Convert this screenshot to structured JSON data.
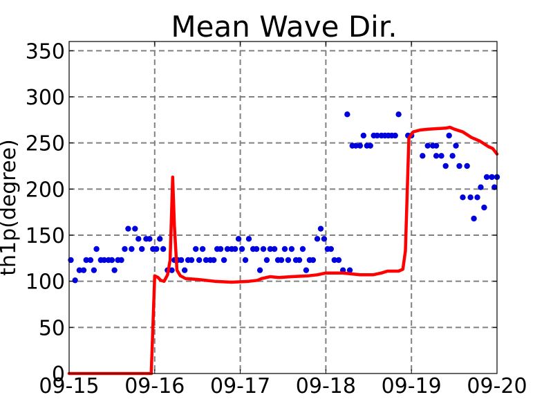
{
  "chart_data": {
    "type": "line",
    "title": "Mean Wave Dir.",
    "xlabel": "",
    "ylabel": "th1p(degree)",
    "x_ticks": [
      "09-15",
      "09-16",
      "09-17",
      "09-18",
      "09-19",
      "09-20"
    ],
    "y_ticks": [
      0,
      50,
      100,
      150,
      200,
      250,
      300,
      350
    ],
    "xlim": [
      0,
      5
    ],
    "ylim": [
      0,
      360
    ],
    "grid": true,
    "colors": {
      "observed": "#0000dd",
      "model": "#ff0000",
      "grid": "#808080"
    },
    "series": [
      {
        "name": "",
        "kind": "scatter",
        "points": [
          [
            0.02,
            123
          ],
          [
            0.07,
            101
          ],
          [
            0.12,
            112
          ],
          [
            0.17,
            112
          ],
          [
            0.2,
            123
          ],
          [
            0.25,
            123
          ],
          [
            0.29,
            112
          ],
          [
            0.32,
            135
          ],
          [
            0.37,
            123
          ],
          [
            0.41,
            123
          ],
          [
            0.46,
            123
          ],
          [
            0.5,
            123
          ],
          [
            0.53,
            112
          ],
          [
            0.57,
            123
          ],
          [
            0.61,
            123
          ],
          [
            0.65,
            135
          ],
          [
            0.69,
            157
          ],
          [
            0.73,
            135
          ],
          [
            0.77,
            157
          ],
          [
            0.81,
            146
          ],
          [
            0.85,
            135
          ],
          [
            0.9,
            146
          ],
          [
            0.94,
            146
          ],
          [
            0.98,
            135
          ],
          [
            1.02,
            135
          ],
          [
            1.06,
            146
          ],
          [
            1.1,
            135
          ],
          [
            1.15,
            112
          ],
          [
            1.2,
            112
          ],
          [
            1.23,
            123
          ],
          [
            1.27,
            123
          ],
          [
            1.31,
            123
          ],
          [
            1.35,
            112
          ],
          [
            1.39,
            123
          ],
          [
            1.43,
            123
          ],
          [
            1.48,
            135
          ],
          [
            1.52,
            123
          ],
          [
            1.56,
            135
          ],
          [
            1.6,
            123
          ],
          [
            1.65,
            123
          ],
          [
            1.69,
            123
          ],
          [
            1.73,
            135
          ],
          [
            1.77,
            135
          ],
          [
            1.81,
            123
          ],
          [
            1.85,
            135
          ],
          [
            1.9,
            135
          ],
          [
            1.94,
            135
          ],
          [
            1.98,
            146
          ],
          [
            2.02,
            135
          ],
          [
            2.06,
            123
          ],
          [
            2.1,
            146
          ],
          [
            2.15,
            135
          ],
          [
            2.19,
            135
          ],
          [
            2.23,
            112
          ],
          [
            2.27,
            135
          ],
          [
            2.31,
            123
          ],
          [
            2.35,
            135
          ],
          [
            2.4,
            135
          ],
          [
            2.44,
            123
          ],
          [
            2.48,
            123
          ],
          [
            2.52,
            135
          ],
          [
            2.56,
            123
          ],
          [
            2.6,
            135
          ],
          [
            2.65,
            123
          ],
          [
            2.69,
            123
          ],
          [
            2.73,
            135
          ],
          [
            2.77,
            112
          ],
          [
            2.81,
            123
          ],
          [
            2.85,
            123
          ],
          [
            2.9,
            146
          ],
          [
            2.94,
            157
          ],
          [
            2.98,
            146
          ],
          [
            3.02,
            135
          ],
          [
            3.06,
            135
          ],
          [
            3.1,
            123
          ],
          [
            3.15,
            123
          ],
          [
            3.2,
            112
          ],
          [
            3.25,
            281
          ],
          [
            3.28,
            112
          ],
          [
            3.31,
            247
          ],
          [
            3.35,
            247
          ],
          [
            3.4,
            247
          ],
          [
            3.44,
            258
          ],
          [
            3.48,
            247
          ],
          [
            3.52,
            247
          ],
          [
            3.56,
            258
          ],
          [
            3.6,
            258
          ],
          [
            3.65,
            258
          ],
          [
            3.69,
            258
          ],
          [
            3.73,
            258
          ],
          [
            3.77,
            258
          ],
          [
            3.81,
            258
          ],
          [
            3.85,
            281
          ],
          [
            3.96,
            258
          ],
          [
            4.0,
            258
          ],
          [
            4.13,
            236
          ],
          [
            4.19,
            247
          ],
          [
            4.25,
            247
          ],
          [
            4.29,
            247
          ],
          [
            4.29,
            236
          ],
          [
            4.35,
            236
          ],
          [
            4.4,
            225
          ],
          [
            4.44,
            258
          ],
          [
            4.48,
            236
          ],
          [
            4.52,
            247
          ],
          [
            4.56,
            225
          ],
          [
            4.6,
            191
          ],
          [
            4.65,
            225
          ],
          [
            4.69,
            191
          ],
          [
            4.73,
            168
          ],
          [
            4.77,
            191
          ],
          [
            4.81,
            202
          ],
          [
            4.85,
            180
          ],
          [
            4.88,
            213
          ],
          [
            4.94,
            213
          ],
          [
            4.97,
            202
          ],
          [
            5.0,
            213
          ]
        ]
      },
      {
        "name": "",
        "kind": "line",
        "points": [
          [
            0,
            0
          ],
          [
            0.96,
            0
          ],
          [
            1.0,
            106
          ],
          [
            1.04,
            104
          ],
          [
            1.07,
            101
          ],
          [
            1.11,
            100
          ],
          [
            1.15,
            107
          ],
          [
            1.18,
            123
          ],
          [
            1.21,
            213
          ],
          [
            1.23,
            160
          ],
          [
            1.26,
            112
          ],
          [
            1.3,
            106
          ],
          [
            1.36,
            103
          ],
          [
            1.5,
            102
          ],
          [
            1.7,
            100
          ],
          [
            1.9,
            99
          ],
          [
            2.1,
            100
          ],
          [
            2.2,
            101
          ],
          [
            2.25,
            103
          ],
          [
            2.35,
            105
          ],
          [
            2.45,
            104
          ],
          [
            2.6,
            105
          ],
          [
            2.8,
            106
          ],
          [
            2.9,
            107
          ],
          [
            3.0,
            109
          ],
          [
            3.1,
            109
          ],
          [
            3.2,
            109
          ],
          [
            3.3,
            108
          ],
          [
            3.4,
            107
          ],
          [
            3.55,
            107
          ],
          [
            3.65,
            109
          ],
          [
            3.72,
            111
          ],
          [
            3.85,
            111
          ],
          [
            3.9,
            113
          ],
          [
            3.93,
            133
          ],
          [
            3.97,
            255
          ],
          [
            4.02,
            262
          ],
          [
            4.1,
            264
          ],
          [
            4.2,
            265
          ],
          [
            4.4,
            266
          ],
          [
            4.45,
            267
          ],
          [
            4.5,
            265
          ],
          [
            4.6,
            262
          ],
          [
            4.7,
            256
          ],
          [
            4.8,
            252
          ],
          [
            4.9,
            246
          ],
          [
            4.95,
            244
          ],
          [
            5.0,
            238
          ]
        ]
      }
    ]
  }
}
